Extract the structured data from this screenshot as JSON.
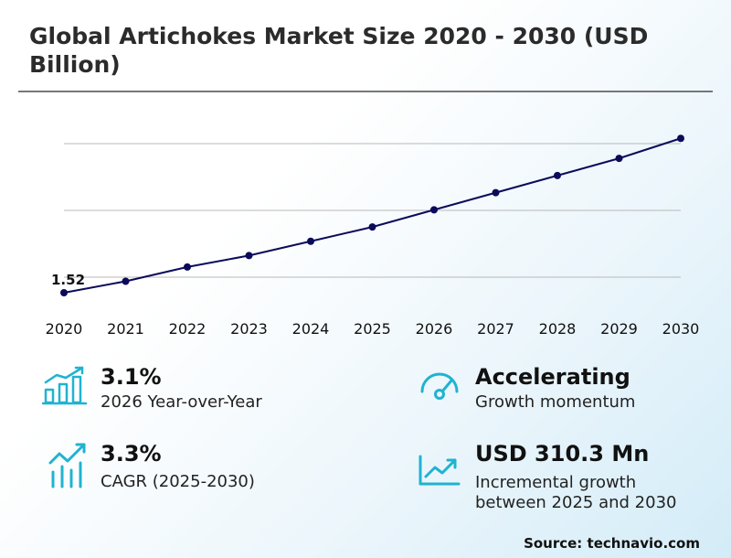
{
  "title": "Global Artichokes Market Size 2020 - 2030 (USD Billion)",
  "chart_data": {
    "type": "line",
    "x": [
      "2020",
      "2021",
      "2022",
      "2023",
      "2024",
      "2025",
      "2026",
      "2027",
      "2028",
      "2029",
      "2030"
    ],
    "series": [
      {
        "values": [
          1.52,
          1.56,
          1.61,
          1.65,
          1.7,
          1.75,
          1.81,
          1.87,
          1.93,
          1.99,
          2.06
        ],
        "color": "#0b0b5a"
      }
    ],
    "data_labels": [
      {
        "index": 0,
        "text": "1.52"
      }
    ],
    "grid": true,
    "ylim": [
      1.44,
      2.16
    ]
  },
  "stats": [
    {
      "value": "3.1%",
      "label": "2026 Year-over-Year",
      "icon": "bar-growth-icon"
    },
    {
      "value": "Accelerating",
      "label": "Growth momentum",
      "icon": "speedometer-icon"
    },
    {
      "value": "3.3%",
      "label": "CAGR (2025-2030)",
      "icon": "trend-bars-icon"
    },
    {
      "value": "USD 310.3 Mn",
      "label_lines": [
        "Incremental growth",
        "between 2025 and 2030"
      ],
      "icon": "line-chart-icon"
    }
  ],
  "accent_color": "#1fb3d1",
  "source": "Source: technavio.com"
}
